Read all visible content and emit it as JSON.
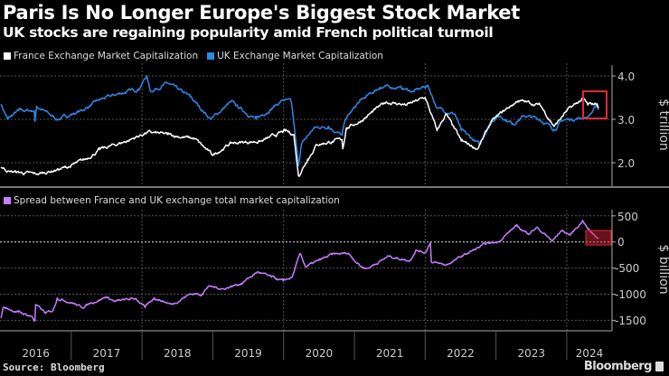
{
  "header": {
    "title": "Paris Is No Longer Europe's Biggest Stock Market",
    "subtitle": "UK stocks are regaining popularity amid French political turmoil"
  },
  "footer": {
    "source": "Source: Bloomberg",
    "logo": "Bloomberg"
  },
  "colors": {
    "france": "#ffffff",
    "uk": "#2f87e6",
    "spread": "#c77dff",
    "highlight": "#e0283c",
    "background": "#000000"
  },
  "chart_data": [
    {
      "type": "line",
      "ylabel": "$ trillion",
      "ylim": [
        1.5,
        4.3
      ],
      "yticks": [
        "2.0",
        "3.0",
        "4.0"
      ],
      "yaxis_side": "right",
      "grid": true,
      "legend_position": "top-left",
      "highlight": "red box around latest values (Apr–Jun 2024)",
      "series": [
        {
          "name": "France Exchange Market Capitalization",
          "color": "#ffffff",
          "points": [
            [
              "2016-01-04",
              1.9
            ],
            [
              "2016-02-16",
              1.8
            ],
            [
              "2016-07-06",
              1.73
            ],
            [
              "2016-12-17",
              1.9
            ],
            [
              "2017-03-13",
              2.07
            ],
            [
              "2017-05-28",
              2.3
            ],
            [
              "2017-10-15",
              2.5
            ],
            [
              "2018-01-29",
              2.7
            ],
            [
              "2018-05-12",
              2.65
            ],
            [
              "2018-09-30",
              2.55
            ],
            [
              "2018-12-31",
              2.17
            ],
            [
              "2019-04-04",
              2.45
            ],
            [
              "2019-09-12",
              2.5
            ],
            [
              "2020-01-09",
              2.73
            ],
            [
              "2020-02-23",
              2.65
            ],
            [
              "2020-03-18",
              1.7
            ],
            [
              "2020-05-04",
              2.08
            ],
            [
              "2020-06-20",
              2.42
            ],
            [
              "2020-10-29",
              2.53
            ],
            [
              "2020-11-02",
              2.32
            ],
            [
              "2020-11-20",
              2.8
            ],
            [
              "2021-01-26",
              2.94
            ],
            [
              "2021-06-14",
              3.4
            ],
            [
              "2021-09-29",
              3.33
            ],
            [
              "2022-01-01",
              3.5
            ],
            [
              "2022-03-03",
              2.74
            ],
            [
              "2022-04-18",
              3.12
            ],
            [
              "2022-07-06",
              2.5
            ],
            [
              "2022-09-29",
              2.32
            ],
            [
              "2022-12-08",
              2.94
            ],
            [
              "2023-02-10",
              3.19
            ],
            [
              "2023-04-25",
              3.43
            ],
            [
              "2023-08-16",
              3.33
            ],
            [
              "2023-10-29",
              2.84
            ],
            [
              "2024-01-01",
              3.19
            ],
            [
              "2024-03-24",
              3.47
            ],
            [
              "2024-04-19",
              3.33
            ],
            [
              "2024-06-05",
              3.36
            ],
            [
              "2024-06-14",
              3.26
            ]
          ]
        },
        {
          "name": "UK Exchange Market Capitalization",
          "color": "#2f87e6",
          "points": [
            [
              "2016-01-04",
              3.35
            ],
            [
              "2016-02-07",
              3.0
            ],
            [
              "2016-04-03",
              3.2
            ],
            [
              "2016-06-24",
              3.2
            ],
            [
              "2016-06-27",
              2.95
            ],
            [
              "2016-07-06",
              3.3
            ],
            [
              "2016-10-21",
              3.0
            ],
            [
              "2017-02-24",
              3.2
            ],
            [
              "2017-05-28",
              3.45
            ],
            [
              "2017-09-12",
              3.6
            ],
            [
              "2017-12-14",
              3.7
            ],
            [
              "2018-01-25",
              4.0
            ],
            [
              "2018-02-13",
              3.65
            ],
            [
              "2018-05-12",
              3.83
            ],
            [
              "2018-09-06",
              3.52
            ],
            [
              "2018-12-22",
              3.0
            ],
            [
              "2019-04-04",
              3.4
            ],
            [
              "2019-08-12",
              3.0
            ],
            [
              "2019-10-30",
              3.25
            ],
            [
              "2019-12-30",
              3.45
            ],
            [
              "2020-02-10",
              3.4
            ],
            [
              "2020-03-18",
              1.94
            ],
            [
              "2020-04-02",
              2.42
            ],
            [
              "2020-06-06",
              2.8
            ],
            [
              "2020-08-20",
              2.84
            ],
            [
              "2020-10-29",
              2.63
            ],
            [
              "2020-11-16",
              3.0
            ],
            [
              "2021-01-26",
              3.4
            ],
            [
              "2021-05-13",
              3.74
            ],
            [
              "2021-08-14",
              3.74
            ],
            [
              "2021-11-01",
              3.64
            ],
            [
              "2022-01-15",
              3.78
            ],
            [
              "2022-03-03",
              3.26
            ],
            [
              "2022-06-04",
              3.12
            ],
            [
              "2022-07-06",
              2.74
            ],
            [
              "2022-10-08",
              2.42
            ],
            [
              "2022-12-08",
              2.98
            ],
            [
              "2023-01-23",
              3.08
            ],
            [
              "2023-03-29",
              2.9
            ],
            [
              "2023-05-28",
              3.08
            ],
            [
              "2023-08-16",
              3.0
            ],
            [
              "2023-10-29",
              2.77
            ],
            [
              "2023-12-15",
              2.98
            ],
            [
              "2024-04-19",
              3.05
            ],
            [
              "2024-06-05",
              3.3
            ],
            [
              "2024-06-14",
              3.22
            ]
          ]
        }
      ]
    },
    {
      "type": "line",
      "ylabel": "$ billion",
      "ylim": [
        -1700,
        650
      ],
      "yticks": [
        "500",
        "0",
        "-500",
        "-1000",
        "-1500"
      ],
      "yaxis_side": "right",
      "grid": true,
      "legend_position": "top-left",
      "highlight": "red shaded box around latest values (Apr–Jun 2024)",
      "xticks": [
        "2016",
        "2017",
        "2018",
        "2019",
        "2020",
        "2021",
        "2022",
        "2023",
        "2024"
      ],
      "series": [
        {
          "name": "Spread between France and UK exchange total market capitalization",
          "color": "#c77dff",
          "points": [
            [
              "2016-01-04",
              -1457
            ],
            [
              "2016-01-15",
              -1254
            ],
            [
              "2016-04-03",
              -1341
            ],
            [
              "2016-06-13",
              -1428
            ],
            [
              "2016-06-27",
              -1514
            ],
            [
              "2016-07-01",
              -1197
            ],
            [
              "2016-08-22",
              -1370
            ],
            [
              "2016-09-28",
              -1312
            ],
            [
              "2016-10-21",
              -1069
            ],
            [
              "2017-01-11",
              -1168
            ],
            [
              "2017-02-24",
              -1254
            ],
            [
              "2017-04-12",
              -1168
            ],
            [
              "2017-06-30",
              -1052
            ],
            [
              "2017-08-16",
              -1139
            ],
            [
              "2017-12-01",
              -1081
            ],
            [
              "2018-01-16",
              -1254
            ],
            [
              "2018-03-05",
              -1069
            ],
            [
              "2018-06-04",
              -1197
            ],
            [
              "2018-09-06",
              -994
            ],
            [
              "2018-11-05",
              -1000
            ],
            [
              "2018-12-08",
              -850
            ],
            [
              "2019-02-24",
              -896
            ],
            [
              "2019-05-28",
              -792
            ],
            [
              "2019-08-21",
              -572
            ],
            [
              "2019-10-30",
              -676
            ],
            [
              "2019-12-30",
              -746
            ],
            [
              "2020-02-14",
              -676
            ],
            [
              "2020-03-27",
              -225
            ],
            [
              "2020-04-24",
              -474
            ],
            [
              "2020-09-07",
              -243
            ],
            [
              "2020-11-30",
              -214
            ],
            [
              "2021-02-06",
              -474
            ],
            [
              "2021-03-11",
              -503
            ],
            [
              "2021-06-28",
              -272
            ],
            [
              "2021-10-12",
              -358
            ],
            [
              "2021-11-14",
              -156
            ],
            [
              "2022-01-01",
              -200
            ],
            [
              "2022-01-28",
              -12
            ],
            [
              "2022-02-02",
              -387
            ],
            [
              "2022-04-18",
              -445
            ],
            [
              "2022-08-08",
              -214
            ],
            [
              "2022-11-10",
              -40
            ],
            [
              "2023-01-10",
              0
            ],
            [
              "2023-04-14",
              306
            ],
            [
              "2023-06-14",
              162
            ],
            [
              "2023-07-31",
              277
            ],
            [
              "2023-10-19",
              17
            ],
            [
              "2023-12-05",
              220
            ],
            [
              "2024-01-19",
              133
            ],
            [
              "2024-03-24",
              410
            ],
            [
              "2024-04-19",
              249
            ],
            [
              "2024-06-14",
              75
            ]
          ]
        }
      ]
    }
  ]
}
